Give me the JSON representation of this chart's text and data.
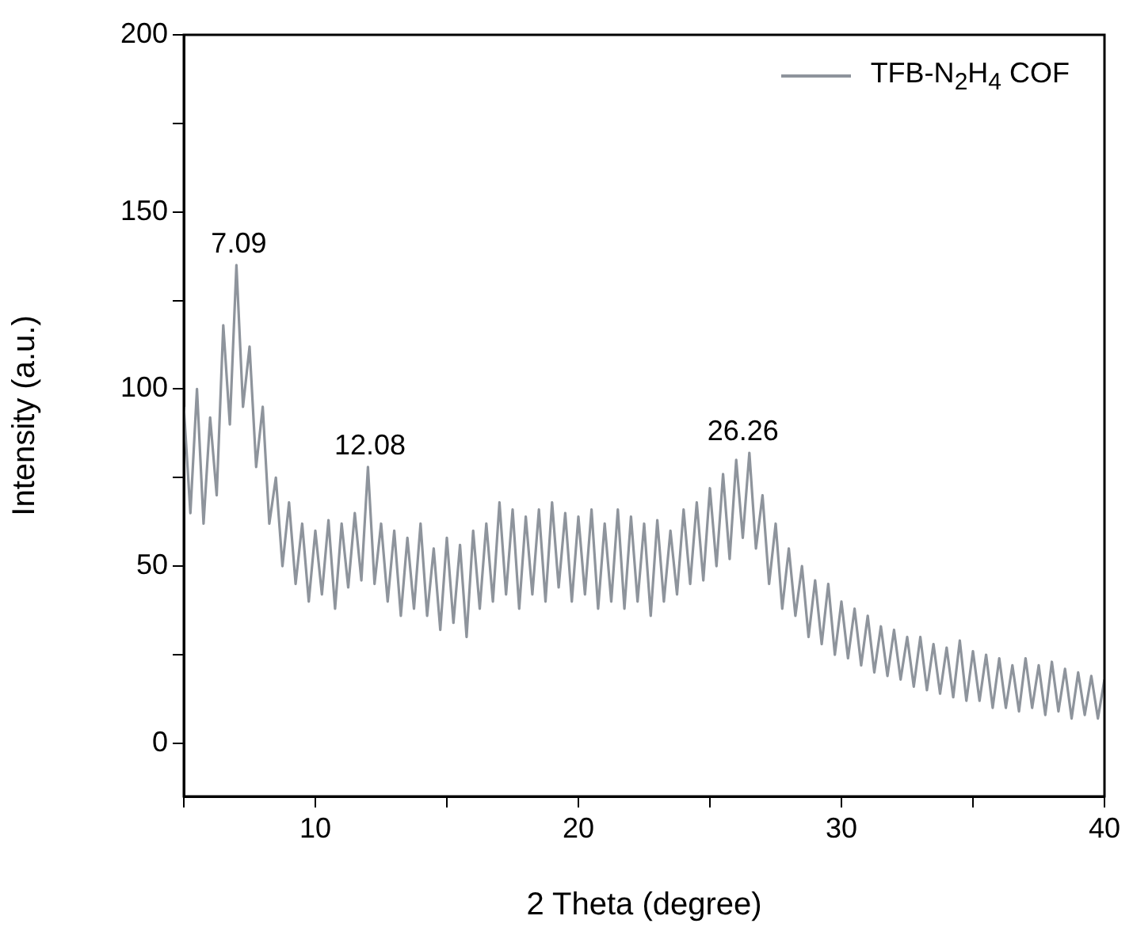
{
  "chart_data": {
    "type": "line",
    "xlabel": "2 Theta (degree)",
    "ylabel": "Intensity (a.u.)",
    "legend": "top right",
    "grid": false,
    "marker": "none",
    "line_style": "solid",
    "xlim": [
      5,
      40
    ],
    "xticks": [
      {
        "value": 5,
        "label": null
      },
      10,
      {
        "value": 15,
        "label": null
      },
      20,
      {
        "value": 25,
        "label": null
      },
      30,
      {
        "value": 35,
        "label": null
      },
      40
    ],
    "ylim": [
      -15,
      200
    ],
    "yticks": [
      0,
      {
        "value": 25,
        "label": null
      },
      50,
      {
        "value": 75,
        "label": null
      },
      100,
      {
        "value": 125,
        "label": null
      },
      150,
      {
        "value": 175,
        "label": null
      },
      200
    ],
    "annotations": [
      {
        "text": "7.09",
        "x": 7.09,
        "y": 135
      },
      {
        "text": "12.08",
        "x": 12.08,
        "y": 78
      },
      {
        "text": "26.26",
        "x": 26.26,
        "y": 82
      }
    ],
    "series": [
      {
        "name": "TFB-N$_{2}$H$_{4}$ COF",
        "color": "#8e949c",
        "x": [
          5,
          5.25,
          5.5,
          5.75,
          6,
          6.25,
          6.5,
          6.75,
          7,
          7.25,
          7.5,
          7.75,
          8,
          8.25,
          8.5,
          8.75,
          9,
          9.25,
          9.5,
          9.75,
          10,
          10.25,
          10.5,
          10.75,
          11,
          11.25,
          11.5,
          11.75,
          12,
          12.25,
          12.5,
          12.75,
          13,
          13.25,
          13.5,
          13.75,
          14,
          14.25,
          14.5,
          14.75,
          15,
          15.25,
          15.5,
          15.75,
          16,
          16.25,
          16.5,
          16.75,
          17,
          17.25,
          17.5,
          17.75,
          18,
          18.25,
          18.5,
          18.75,
          19,
          19.25,
          19.5,
          19.75,
          20,
          20.25,
          20.5,
          20.75,
          21,
          21.25,
          21.5,
          21.75,
          22,
          22.25,
          22.5,
          22.75,
          23,
          23.25,
          23.5,
          23.75,
          24,
          24.25,
          24.5,
          24.75,
          25,
          25.25,
          25.5,
          25.75,
          26,
          26.25,
          26.5,
          26.75,
          27,
          27.25,
          27.5,
          27.75,
          28,
          28.25,
          28.5,
          28.75,
          29,
          29.25,
          29.5,
          29.75,
          30,
          30.25,
          30.5,
          30.75,
          31,
          31.25,
          31.5,
          31.75,
          32,
          32.25,
          32.5,
          32.75,
          33,
          33.25,
          33.5,
          33.75,
          34,
          34.25,
          34.5,
          34.75,
          35,
          35.25,
          35.5,
          35.75,
          36,
          36.25,
          36.5,
          36.75,
          37,
          37.25,
          37.5,
          37.75,
          38,
          38.25,
          38.5,
          38.75,
          39,
          39.25,
          39.5,
          39.75,
          40
        ],
        "values": [
          95,
          65,
          100,
          62,
          92,
          70,
          118,
          90,
          135,
          95,
          112,
          78,
          95,
          62,
          75,
          50,
          68,
          45,
          62,
          40,
          60,
          42,
          63,
          38,
          62,
          44,
          65,
          46,
          78,
          45,
          62,
          40,
          60,
          36,
          58,
          38,
          62,
          36,
          55,
          32,
          58,
          34,
          56,
          30,
          60,
          38,
          62,
          40,
          68,
          42,
          66,
          38,
          64,
          42,
          66,
          40,
          68,
          44,
          65,
          40,
          64,
          42,
          66,
          38,
          62,
          40,
          66,
          38,
          64,
          40,
          62,
          36,
          63,
          40,
          60,
          42,
          66,
          45,
          68,
          46,
          72,
          50,
          76,
          52,
          80,
          58,
          82,
          55,
          70,
          45,
          62,
          38,
          55,
          36,
          50,
          30,
          46,
          28,
          45,
          25,
          40,
          24,
          38,
          22,
          36,
          20,
          33,
          19,
          32,
          18,
          30,
          16,
          30,
          15,
          28,
          14,
          27,
          13,
          29,
          12,
          26,
          12,
          25,
          10,
          24,
          10,
          22,
          9,
          24,
          10,
          22,
          8,
          23,
          9,
          21,
          7,
          20,
          8,
          19,
          7,
          18
        ]
      }
    ]
  }
}
